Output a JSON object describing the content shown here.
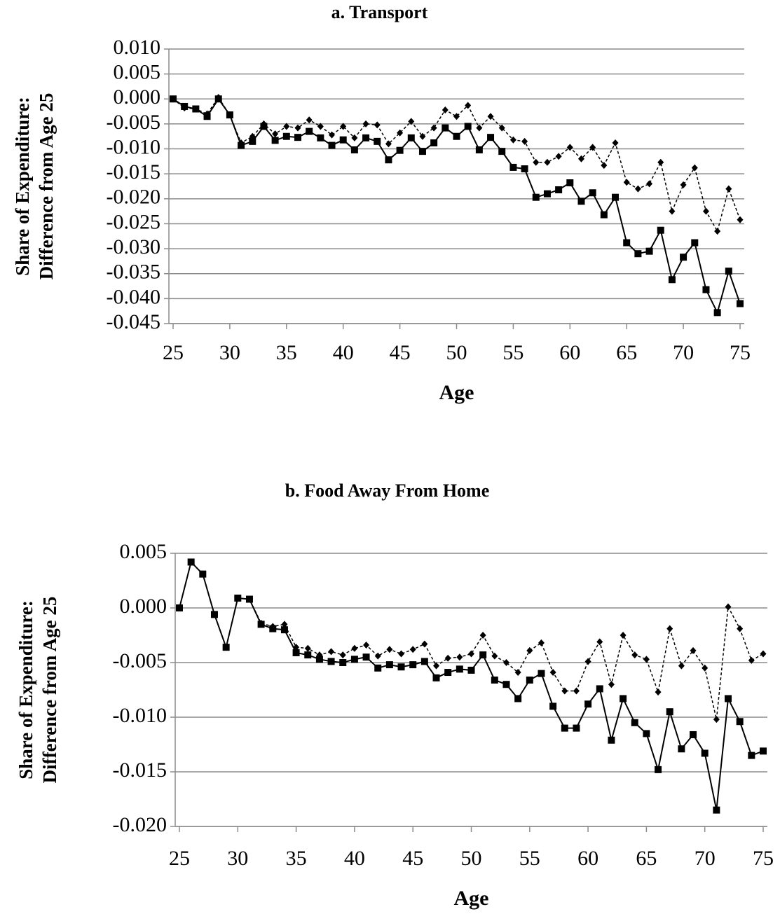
{
  "chart_data": [
    {
      "type": "line",
      "title": "a. Transport",
      "x_label": "Age",
      "y_label": [
        "Share of Expenditure:",
        "Difference from Age 25"
      ],
      "x": [
        25,
        26,
        27,
        28,
        29,
        30,
        31,
        32,
        33,
        34,
        35,
        36,
        37,
        38,
        39,
        40,
        41,
        42,
        43,
        44,
        45,
        46,
        47,
        48,
        49,
        50,
        51,
        52,
        53,
        54,
        55,
        56,
        57,
        58,
        59,
        60,
        61,
        62,
        63,
        64,
        65,
        66,
        67,
        68,
        69,
        70,
        71,
        72,
        73,
        74,
        75
      ],
      "xlim": [
        25,
        75
      ],
      "xticks": [
        25,
        30,
        35,
        40,
        45,
        50,
        55,
        60,
        65,
        70,
        75
      ],
      "ylim": [
        -0.045,
        0.01
      ],
      "yticks": [
        {
          "value": 0.01,
          "label": "0.010"
        },
        {
          "value": 0.005,
          "label": "0.005"
        },
        {
          "value": 0,
          "label": "0.000"
        },
        {
          "value": -0.005,
          "label": "-0.005"
        },
        {
          "value": -0.01,
          "label": "-0.010"
        },
        {
          "value": -0.015,
          "label": "-0.015"
        },
        {
          "value": -0.02,
          "label": "-0.020"
        },
        {
          "value": -0.025,
          "label": "-0.025"
        },
        {
          "value": -0.03,
          "label": "-0.030"
        },
        {
          "value": -0.035,
          "label": "-0.035"
        },
        {
          "value": -0.04,
          "label": "-0.040"
        },
        {
          "value": -0.045,
          "label": "-0.045"
        }
      ],
      "grid": true,
      "series": [
        {
          "color": "#000000",
          "line_style": "dashed",
          "marker": "diamond",
          "values": [
            0,
            -0.0018,
            -0.002,
            -0.003,
            0.0003,
            -0.0032,
            -0.0088,
            -0.0075,
            -0.005,
            -0.007,
            -0.0055,
            -0.0058,
            -0.0042,
            -0.0055,
            -0.0072,
            -0.0055,
            -0.0078,
            -0.005,
            -0.0052,
            -0.009,
            -0.0068,
            -0.0045,
            -0.0075,
            -0.0058,
            -0.0022,
            -0.0035,
            -0.0013,
            -0.0058,
            -0.0035,
            -0.0058,
            -0.0082,
            -0.0085,
            -0.0127,
            -0.0127,
            -0.0115,
            -0.0097,
            -0.012,
            -0.0097,
            -0.0133,
            -0.0088,
            -0.0167,
            -0.018,
            -0.017,
            -0.0127,
            -0.0225,
            -0.0172,
            -0.0138,
            -0.0225,
            -0.0265,
            -0.018,
            -0.0242
          ]
        },
        {
          "color": "#000000",
          "line_style": "solid",
          "marker": "square",
          "values": [
            0,
            -0.0015,
            -0.002,
            -0.0035,
            0,
            -0.0032,
            -0.0093,
            -0.0085,
            -0.0055,
            -0.0083,
            -0.0075,
            -0.0077,
            -0.0065,
            -0.0078,
            -0.0093,
            -0.0082,
            -0.0102,
            -0.0078,
            -0.0085,
            -0.0122,
            -0.0103,
            -0.0078,
            -0.0105,
            -0.0088,
            -0.0058,
            -0.0075,
            -0.0055,
            -0.0102,
            -0.0077,
            -0.0105,
            -0.0137,
            -0.014,
            -0.0197,
            -0.019,
            -0.0182,
            -0.0168,
            -0.0205,
            -0.0188,
            -0.0232,
            -0.0197,
            -0.0288,
            -0.031,
            -0.0305,
            -0.0263,
            -0.0362,
            -0.0317,
            -0.0288,
            -0.0382,
            -0.0428,
            -0.0345,
            -0.041
          ]
        }
      ]
    },
    {
      "type": "line",
      "title": "b. Food Away From Home",
      "x_label": "Age",
      "y_label": [
        "Share of Expenditure:",
        "Difference from Age 25"
      ],
      "x": [
        25,
        26,
        27,
        28,
        29,
        30,
        31,
        32,
        33,
        34,
        35,
        36,
        37,
        38,
        39,
        40,
        41,
        42,
        43,
        44,
        45,
        46,
        47,
        48,
        49,
        50,
        51,
        52,
        53,
        54,
        55,
        56,
        57,
        58,
        59,
        60,
        61,
        62,
        63,
        64,
        65,
        66,
        67,
        68,
        69,
        70,
        71,
        72,
        73,
        74,
        75
      ],
      "xlim": [
        25,
        75
      ],
      "xticks": [
        25,
        30,
        35,
        40,
        45,
        50,
        55,
        60,
        65,
        70,
        75
      ],
      "ylim": [
        -0.02,
        0.005
      ],
      "yticks": [
        {
          "value": 0.005,
          "label": "0.005"
        },
        {
          "value": 0,
          "label": "0.000"
        },
        {
          "value": -0.005,
          "label": "-0.005"
        },
        {
          "value": -0.01,
          "label": "-0.010"
        },
        {
          "value": -0.015,
          "label": "-0.015"
        },
        {
          "value": -0.02,
          "label": "-0.020"
        }
      ],
      "grid": true,
      "series": [
        {
          "color": "#000000",
          "line_style": "dashed",
          "marker": "diamond",
          "values": [
            0,
            0.0042,
            0.0031,
            -0.0006,
            -0.0036,
            0.0009,
            0.0008,
            -0.0014,
            -0.0017,
            -0.0015,
            -0.0036,
            -0.0037,
            -0.0043,
            -0.004,
            -0.0043,
            -0.0037,
            -0.0034,
            -0.0044,
            -0.0038,
            -0.0042,
            -0.0038,
            -0.0033,
            -0.0053,
            -0.0046,
            -0.0045,
            -0.0042,
            -0.0025,
            -0.0044,
            -0.005,
            -0.0059,
            -0.0039,
            -0.0032,
            -0.0059,
            -0.0076,
            -0.0076,
            -0.0049,
            -0.0031,
            -0.007,
            -0.0025,
            -0.0043,
            -0.0047,
            -0.0077,
            -0.0019,
            -0.0053,
            -0.0039,
            -0.0055,
            -0.0102,
            0.0001,
            -0.0019,
            -0.0048,
            -0.0042
          ]
        },
        {
          "color": "#000000",
          "line_style": "solid",
          "marker": "square",
          "values": [
            0,
            0.0042,
            0.0031,
            -0.0006,
            -0.0036,
            0.0009,
            0.0008,
            -0.0015,
            -0.0019,
            -0.002,
            -0.0041,
            -0.0043,
            -0.0047,
            -0.0049,
            -0.005,
            -0.0047,
            -0.0045,
            -0.0055,
            -0.0052,
            -0.0054,
            -0.0052,
            -0.0049,
            -0.0064,
            -0.0059,
            -0.0056,
            -0.0057,
            -0.0043,
            -0.0066,
            -0.007,
            -0.0083,
            -0.0066,
            -0.006,
            -0.009,
            -0.011,
            -0.011,
            -0.0088,
            -0.0074,
            -0.0121,
            -0.0083,
            -0.0105,
            -0.0115,
            -0.0148,
            -0.0095,
            -0.0129,
            -0.0116,
            -0.0133,
            -0.0185,
            -0.0083,
            -0.0104,
            -0.0135,
            -0.0131
          ]
        }
      ]
    }
  ]
}
